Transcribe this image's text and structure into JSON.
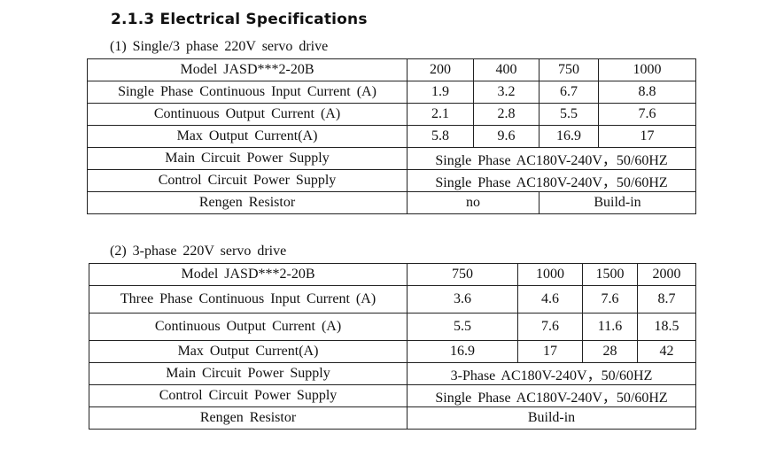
{
  "section": {
    "title": "2.1.3 Electrical Specifications"
  },
  "table1": {
    "caption": "(1) Single/3 phase 220V servo drive",
    "model_label": "Model JASD***2-20B",
    "models": [
      "200",
      "400",
      "750",
      "1000"
    ],
    "rows": [
      {
        "label": "Single Phase Continuous Input Current (A)",
        "values": [
          "1.9",
          "3.2",
          "6.7",
          "8.8"
        ]
      },
      {
        "label": "Continuous Output Current (A)",
        "values": [
          "2.1",
          "2.8",
          "5.5",
          "7.6"
        ]
      },
      {
        "label": "Max Output Current(A)",
        "values": [
          "5.8",
          "9.6",
          "16.9",
          "17"
        ]
      }
    ],
    "main_power": {
      "label": "Main Circuit Power Supply",
      "value": "Single Phase AC180V-240V，50/60HZ"
    },
    "control_power": {
      "label": "Control Circuit Power Supply",
      "value": "Single Phase AC180V-240V，50/60HZ"
    },
    "regen": {
      "label": "Rengen Resistor",
      "values": [
        "no",
        "Build-in"
      ]
    }
  },
  "table2": {
    "caption": "(2) 3-phase 220V servo drive",
    "model_label": "Model JASD***2-20B",
    "models": [
      "750",
      "1000",
      "1500",
      "2000"
    ],
    "rows": [
      {
        "label": "Three Phase Continuous Input Current (A)",
        "values": [
          "3.6",
          "4.6",
          "7.6",
          "8.7"
        ]
      },
      {
        "label": "Continuous Output Current (A)",
        "values": [
          "5.5",
          "7.6",
          "11.6",
          "18.5"
        ]
      },
      {
        "label": "Max Output Current(A)",
        "values": [
          "16.9",
          "17",
          "28",
          "42"
        ]
      }
    ],
    "main_power": {
      "label": "Main Circuit Power Supply",
      "value": "3-Phase AC180V-240V，50/60HZ"
    },
    "control_power": {
      "label": "Control Circuit Power Supply",
      "value": "Single Phase AC180V-240V，50/60HZ"
    },
    "regen": {
      "label": "Rengen Resistor",
      "value": "Build-in"
    }
  }
}
